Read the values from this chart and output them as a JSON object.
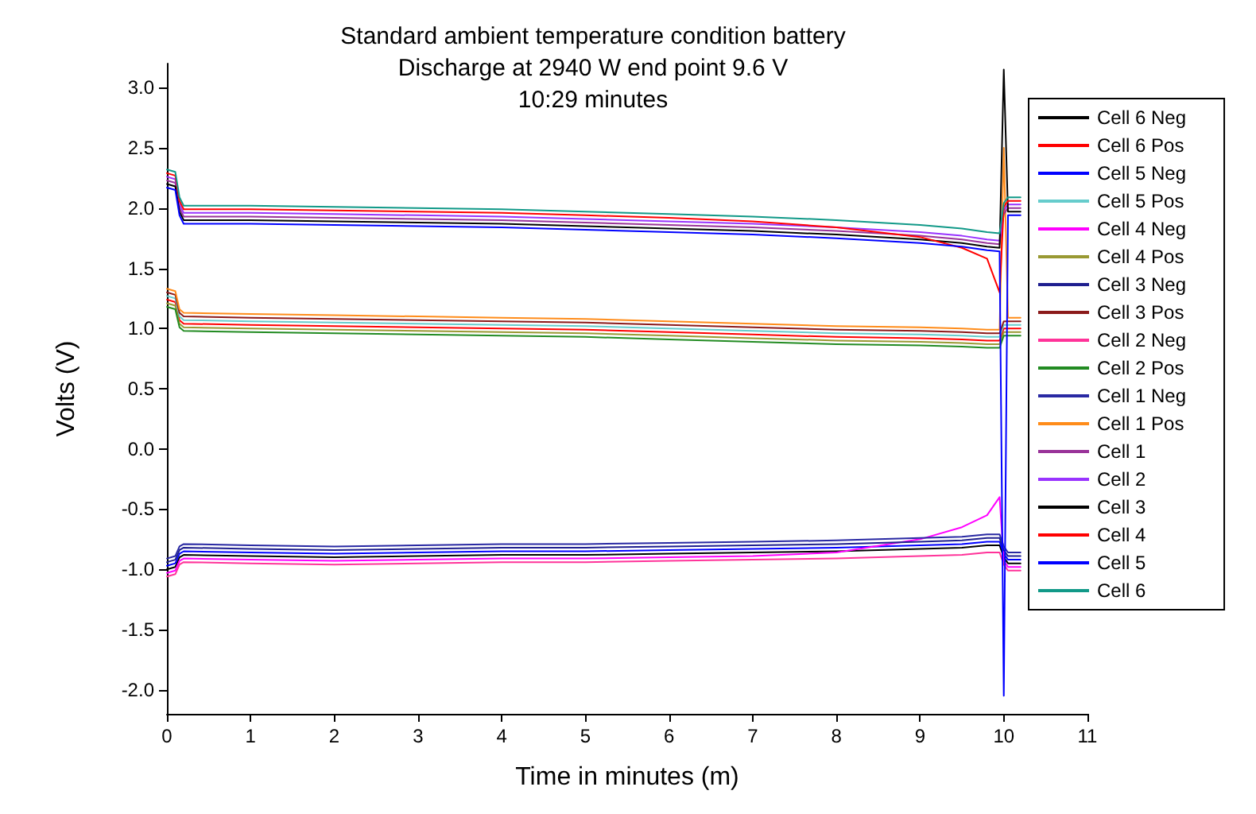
{
  "chart_data": {
    "type": "line",
    "title": "Standard ambient temperature condition battery\nDischarge at 2940 W end point 9.6 V\n10:29 minutes",
    "xlabel": "Time in minutes (m)",
    "ylabel": "Volts (V)",
    "x": [
      0,
      0.1,
      0.15,
      0.2,
      1,
      2,
      3,
      4,
      5,
      6,
      7,
      8,
      9,
      9.5,
      9.8,
      9.95,
      10,
      10.05,
      10.2
    ],
    "xlim": [
      0,
      11
    ],
    "xticks": [
      0,
      1,
      2,
      3,
      4,
      5,
      6,
      7,
      8,
      9,
      10,
      11
    ],
    "ylim": [
      -2.2,
      3.2
    ],
    "yticks": [
      {
        "value": -2,
        "label": "-2.0"
      },
      -1.5,
      {
        "value": -1,
        "label": "-1.0"
      },
      -0.5,
      {
        "value": 0,
        "label": "0.0"
      },
      0.5,
      {
        "value": 1,
        "label": "1.0"
      },
      1.5,
      {
        "value": 2,
        "label": "2.0"
      },
      2.5,
      {
        "value": 3,
        "label": "3.0"
      }
    ],
    "legend": "right",
    "marker": "none",
    "line_style": "solid",
    "series": [
      {
        "name": "Cell 6 Neg",
        "color": "#000000",
        "values": [
          -1.0,
          -0.98,
          -0.9,
          -0.88,
          -0.89,
          -0.9,
          -0.89,
          -0.88,
          -0.88,
          -0.87,
          -0.86,
          -0.85,
          -0.83,
          -0.82,
          -0.8,
          -0.8,
          -0.9,
          -0.95,
          -0.95
        ]
      },
      {
        "name": "Cell 6 Pos",
        "color": "#ff0000",
        "values": [
          1.24,
          1.22,
          1.07,
          1.04,
          1.03,
          1.02,
          1.01,
          1.0,
          0.99,
          0.97,
          0.95,
          0.93,
          0.92,
          0.91,
          0.9,
          0.9,
          1.0,
          1.0,
          1.0
        ]
      },
      {
        "name": "Cell 5 Neg",
        "color": "#0000ff",
        "values": [
          -0.97,
          -0.95,
          -0.87,
          -0.85,
          -0.86,
          -0.87,
          -0.86,
          -0.85,
          -0.85,
          -0.84,
          -0.83,
          -0.82,
          -0.8,
          -0.79,
          -0.77,
          -0.77,
          -0.87,
          -0.92,
          -0.92
        ]
      },
      {
        "name": "Cell 5 Pos",
        "color": "#66cccc",
        "values": [
          1.27,
          1.25,
          1.1,
          1.07,
          1.06,
          1.05,
          1.04,
          1.03,
          1.02,
          1.0,
          0.98,
          0.96,
          0.95,
          0.94,
          0.93,
          0.93,
          1.03,
          1.03,
          1.03
        ]
      },
      {
        "name": "Cell 4 Neg",
        "color": "#ff00ff",
        "values": [
          -1.03,
          -1.01,
          -0.93,
          -0.91,
          -0.92,
          -0.93,
          -0.92,
          -0.91,
          -0.91,
          -0.9,
          -0.89,
          -0.86,
          -0.75,
          -0.65,
          -0.55,
          -0.4,
          -0.93,
          -0.98,
          -0.98
        ]
      },
      {
        "name": "Cell 4 Pos",
        "color": "#999933",
        "values": [
          1.21,
          1.19,
          1.04,
          1.01,
          1.0,
          0.99,
          0.98,
          0.97,
          0.96,
          0.94,
          0.92,
          0.9,
          0.89,
          0.88,
          0.87,
          0.87,
          0.97,
          0.97,
          0.97
        ]
      },
      {
        "name": "Cell 3 Neg",
        "color": "#1f1f8f",
        "values": [
          -0.94,
          -0.92,
          -0.84,
          -0.82,
          -0.83,
          -0.84,
          -0.83,
          -0.82,
          -0.82,
          -0.81,
          -0.8,
          -0.79,
          -0.77,
          -0.76,
          -0.74,
          -0.74,
          -0.84,
          -0.89,
          -0.89
        ]
      },
      {
        "name": "Cell 3 Pos",
        "color": "#8b1a1a",
        "values": [
          1.3,
          1.28,
          1.13,
          1.1,
          1.09,
          1.08,
          1.07,
          1.06,
          1.05,
          1.03,
          1.01,
          0.99,
          0.98,
          0.97,
          0.96,
          0.96,
          1.06,
          1.06,
          1.06
        ]
      },
      {
        "name": "Cell 2 Neg",
        "color": "#ff3399",
        "values": [
          -1.06,
          -1.04,
          -0.96,
          -0.94,
          -0.95,
          -0.96,
          -0.95,
          -0.94,
          -0.94,
          -0.93,
          -0.92,
          -0.91,
          -0.89,
          -0.88,
          -0.86,
          -0.86,
          -0.96,
          -1.01,
          -1.01
        ]
      },
      {
        "name": "Cell 2 Pos",
        "color": "#228b22",
        "values": [
          1.18,
          1.16,
          1.01,
          0.98,
          0.97,
          0.96,
          0.95,
          0.94,
          0.93,
          0.91,
          0.89,
          0.87,
          0.86,
          0.85,
          0.84,
          0.84,
          0.94,
          0.94,
          0.94
        ]
      },
      {
        "name": "Cell 1 Neg",
        "color": "#2929a3",
        "values": [
          -0.91,
          -0.89,
          -0.81,
          -0.79,
          -0.8,
          -0.81,
          -0.8,
          -0.79,
          -0.79,
          -0.78,
          -0.77,
          -0.76,
          -0.74,
          -0.73,
          -0.71,
          -0.71,
          -0.81,
          -0.86,
          -0.86
        ]
      },
      {
        "name": "Cell 1 Pos",
        "color": "#ff8c1a",
        "values": [
          1.33,
          1.31,
          1.16,
          1.13,
          1.12,
          1.11,
          1.1,
          1.09,
          1.08,
          1.06,
          1.04,
          1.02,
          1.01,
          1.0,
          0.99,
          0.99,
          2.5,
          1.09,
          1.09
        ]
      },
      {
        "name": "Cell 1",
        "color": "#993399",
        "values": [
          2.23,
          2.21,
          2.0,
          1.93,
          1.93,
          1.92,
          1.91,
          1.9,
          1.88,
          1.86,
          1.84,
          1.81,
          1.77,
          1.74,
          1.71,
          1.7,
          1.95,
          2.0,
          2.0
        ]
      },
      {
        "name": "Cell 2",
        "color": "#9933ff",
        "values": [
          2.26,
          2.24,
          2.03,
          1.96,
          1.96,
          1.95,
          1.94,
          1.93,
          1.91,
          1.89,
          1.87,
          1.84,
          1.8,
          1.77,
          1.74,
          1.73,
          1.98,
          2.03,
          2.03
        ]
      },
      {
        "name": "Cell 3",
        "color": "#000000",
        "values": [
          2.2,
          2.18,
          1.97,
          1.9,
          1.9,
          1.89,
          1.88,
          1.87,
          1.85,
          1.83,
          1.81,
          1.78,
          1.74,
          1.71,
          1.68,
          1.67,
          3.15,
          1.97,
          1.97
        ]
      },
      {
        "name": "Cell 4",
        "color": "#ff0000",
        "values": [
          2.29,
          2.27,
          2.06,
          1.99,
          1.99,
          1.98,
          1.97,
          1.96,
          1.94,
          1.92,
          1.89,
          1.84,
          1.76,
          1.67,
          1.58,
          1.3,
          2.01,
          2.06,
          2.06
        ]
      },
      {
        "name": "Cell 5",
        "color": "#0000ff",
        "values": [
          2.17,
          2.15,
          1.94,
          1.87,
          1.87,
          1.86,
          1.85,
          1.84,
          1.82,
          1.8,
          1.78,
          1.75,
          1.71,
          1.68,
          1.65,
          1.64,
          -2.05,
          1.94,
          1.94
        ]
      },
      {
        "name": "Cell 6",
        "color": "#119988",
        "values": [
          2.32,
          2.3,
          2.09,
          2.02,
          2.02,
          2.01,
          2.0,
          1.99,
          1.97,
          1.95,
          1.93,
          1.9,
          1.86,
          1.83,
          1.8,
          1.79,
          2.04,
          2.09,
          2.09
        ]
      }
    ]
  }
}
